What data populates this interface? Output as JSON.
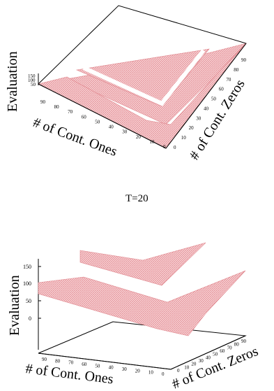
{
  "colors": {
    "surface": "#e89aa0",
    "surface_light": "#f6c9cc",
    "axis": "#000000",
    "background": "#ffffff"
  },
  "caption": "T=20",
  "chart_data": [
    {
      "type": "surface3d",
      "zlabel": "Evaluation",
      "xlabel": "# of Cont. Ones",
      "ylabel": "# of Cont. Zeros",
      "x_ticks": [
        "90",
        "80",
        "70",
        "60",
        "50",
        "40",
        "30",
        "20",
        "10",
        "0"
      ],
      "y_ticks": [
        "0",
        "10",
        "20",
        "30",
        "40",
        "50",
        "60",
        "70",
        "80",
        "90"
      ],
      "z_ticks": [
        "150",
        "100",
        "50"
      ]
    },
    {
      "type": "surface3d",
      "zlabel": "Evaluation",
      "xlabel": "# of Cont. Ones",
      "ylabel": "# of Cont. Zeros",
      "x_ticks": [
        "90",
        "80",
        "70",
        "60",
        "50",
        "40",
        "30",
        "20",
        "10",
        "0"
      ],
      "y_ticks": [
        "0",
        "10",
        "20",
        "30",
        "40",
        "50",
        "60",
        "70",
        "80",
        "90"
      ],
      "z_ticks": [
        "150",
        "100",
        "50",
        "0"
      ]
    }
  ]
}
